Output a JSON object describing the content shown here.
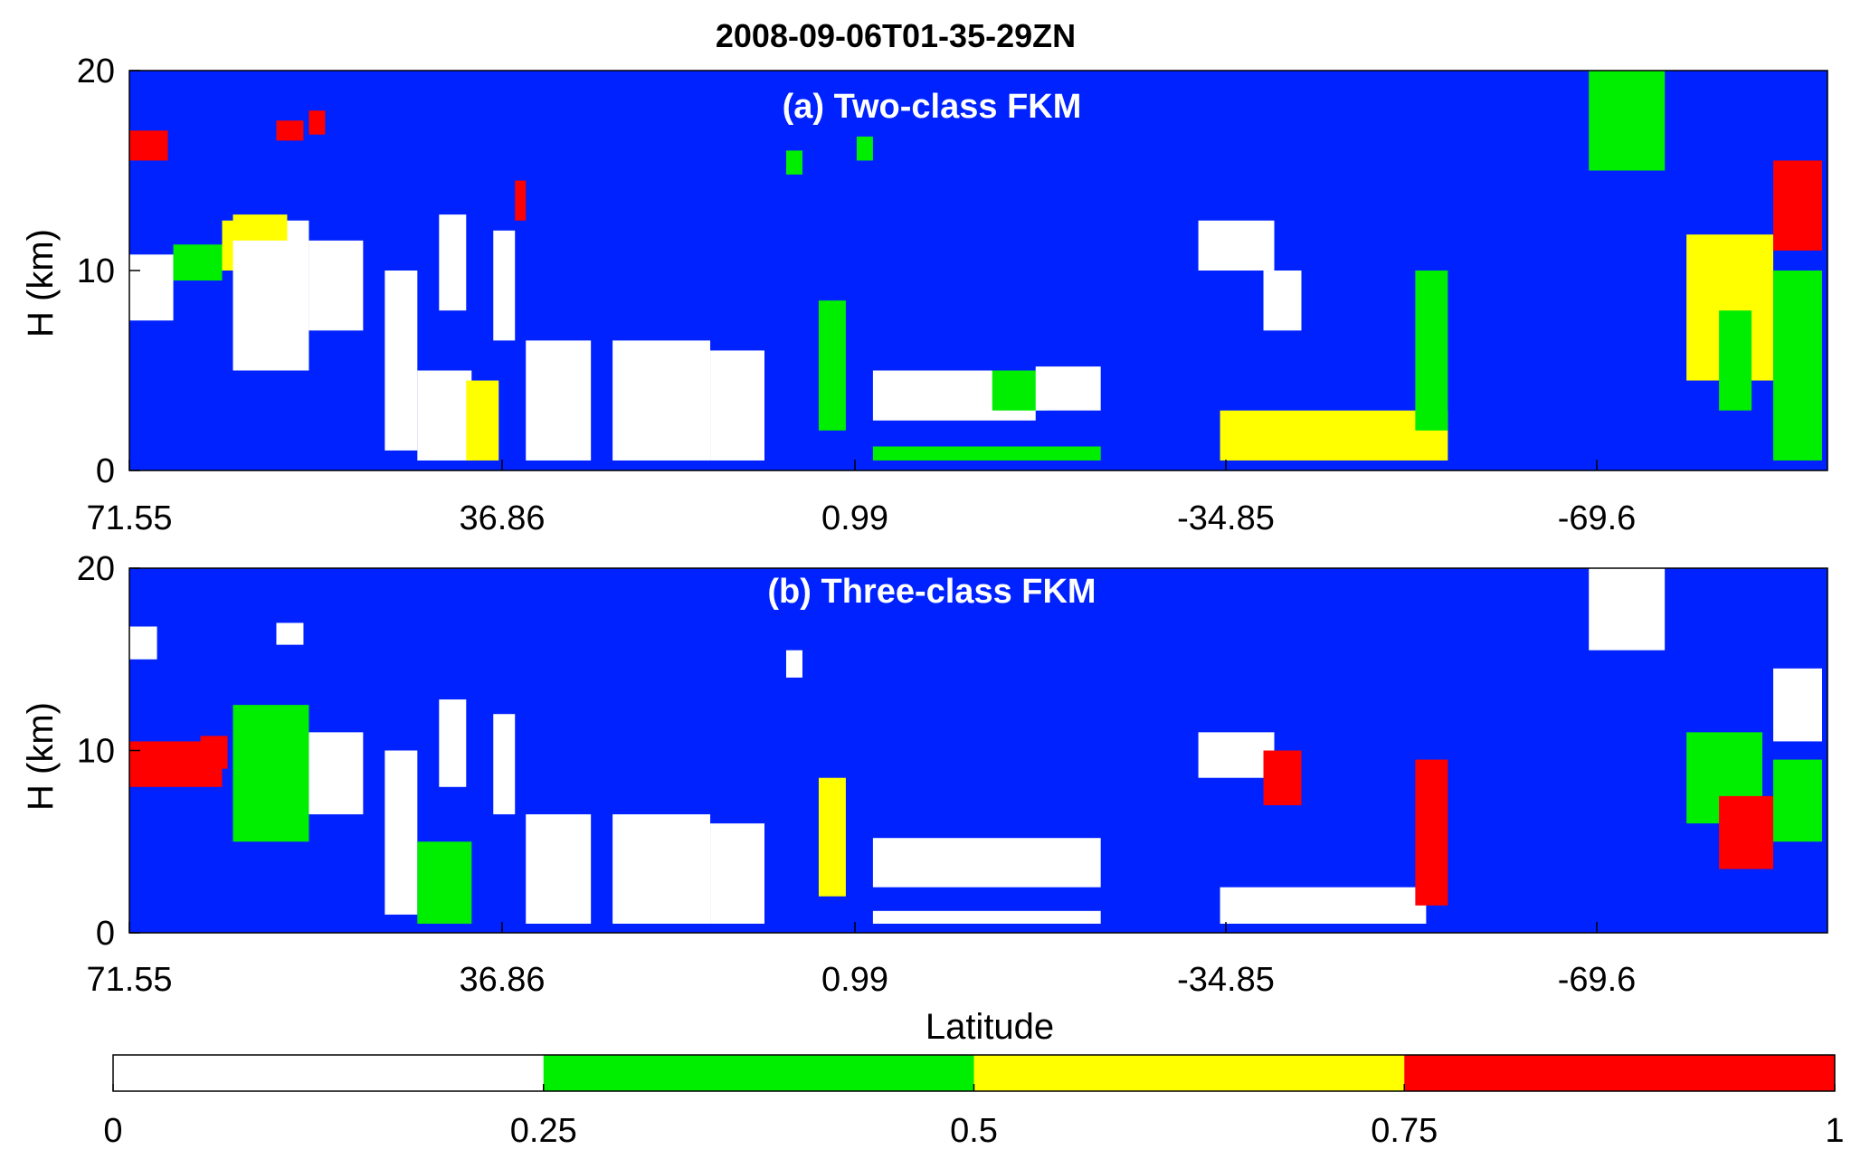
{
  "title": "2008-09-06T01-35-29ZN",
  "colors": {
    "background": "#0022ff",
    "bin_1": "#ffffff",
    "bin_2": "#00ee00",
    "bin_3": "#ffff00",
    "bin_4": "#ff0000"
  },
  "chart_data": [
    {
      "type": "heatmap",
      "panel_label": "(a) Two-class FKM",
      "xlabel": "",
      "ylabel": "H (km)",
      "x_ticks": [
        "71.55",
        "36.86",
        "0.99",
        "-34.85",
        "-69.6"
      ],
      "y_ticks": [
        "0",
        "10",
        "20"
      ],
      "xlim": [
        71.55,
        -85
      ],
      "ylim": [
        0,
        20
      ],
      "regions": [
        {
          "lat": [
            71.55,
            67.5
          ],
          "h": [
            7.5,
            10.8
          ],
          "value": 0.1
        },
        {
          "lat": [
            71.55,
            68.0
          ],
          "h": [
            15.5,
            17.0
          ],
          "value": 0.9
        },
        {
          "lat": [
            67.5,
            63.0
          ],
          "h": [
            9.5,
            11.3
          ],
          "value": 0.35
        },
        {
          "lat": [
            63.0,
            62.0
          ],
          "h": [
            10.0,
            12.5
          ],
          "value": 0.6
        },
        {
          "lat": [
            62.0,
            55.0
          ],
          "h": [
            5.0,
            12.5
          ],
          "value": 0.1
        },
        {
          "lat": [
            62.0,
            57.0
          ],
          "h": [
            11.5,
            12.8
          ],
          "value": 0.6
        },
        {
          "lat": [
            58.0,
            55.5
          ],
          "h": [
            16.5,
            17.5
          ],
          "value": 0.9
        },
        {
          "lat": [
            55.0,
            53.5
          ],
          "h": [
            16.8,
            18.0
          ],
          "value": 0.9
        },
        {
          "lat": [
            55.0,
            50.0
          ],
          "h": [
            7.0,
            11.5
          ],
          "value": 0.15
        },
        {
          "lat": [
            48.0,
            45.0
          ],
          "h": [
            1.0,
            10.0
          ],
          "value": 0.1
        },
        {
          "lat": [
            45.0,
            40.0
          ],
          "h": [
            0.5,
            5.0
          ],
          "value": 0.1
        },
        {
          "lat": [
            43.0,
            40.5
          ],
          "h": [
            8.0,
            12.8
          ],
          "value": 0.1
        },
        {
          "lat": [
            40.5,
            37.5
          ],
          "h": [
            0.5,
            4.5
          ],
          "value": 0.7
        },
        {
          "lat": [
            38.0,
            36.0
          ],
          "h": [
            6.5,
            12.0
          ],
          "value": 0.1
        },
        {
          "lat": [
            36.0,
            35.0
          ],
          "h": [
            12.5,
            14.5
          ],
          "value": 0.9
        },
        {
          "lat": [
            35.0,
            29.0
          ],
          "h": [
            0.5,
            6.5
          ],
          "value": 0.1
        },
        {
          "lat": [
            27.0,
            18.0
          ],
          "h": [
            0.5,
            6.5
          ],
          "value": 0.1
        },
        {
          "lat": [
            18.0,
            13.0
          ],
          "h": [
            0.5,
            6.0
          ],
          "value": 0.12
        },
        {
          "lat": [
            11.0,
            9.5
          ],
          "h": [
            14.8,
            16.0
          ],
          "value": 0.35
        },
        {
          "lat": [
            8.0,
            5.5
          ],
          "h": [
            2.0,
            8.5
          ],
          "value": 0.4
        },
        {
          "lat": [
            4.5,
            3.0
          ],
          "h": [
            15.5,
            16.7
          ],
          "value": 0.35
        },
        {
          "lat": [
            3.0,
            -12.0
          ],
          "h": [
            2.5,
            5.0
          ],
          "value": 0.1
        },
        {
          "lat": [
            -8.0,
            -13.0
          ],
          "h": [
            3.0,
            5.0
          ],
          "value": 0.3
        },
        {
          "lat": [
            -12.0,
            -18.0
          ],
          "h": [
            3.0,
            5.2
          ],
          "value": 0.1
        },
        {
          "lat": [
            3.0,
            -18.0
          ],
          "h": [
            0.5,
            1.2
          ],
          "value": 0.45
        },
        {
          "lat": [
            -27.0,
            -34.0
          ],
          "h": [
            10.0,
            12.5
          ],
          "value": 0.1
        },
        {
          "lat": [
            -33.0,
            -36.5
          ],
          "h": [
            7.0,
            10.0
          ],
          "value": 0.1
        },
        {
          "lat": [
            -29.0,
            -50.0
          ],
          "h": [
            0.5,
            3.0
          ],
          "value": 0.55
        },
        {
          "lat": [
            -47.0,
            -50.0
          ],
          "h": [
            2.0,
            10.0
          ],
          "value": 0.35
        },
        {
          "lat": [
            -63.0,
            -70.0
          ],
          "h": [
            15.0,
            20.0
          ],
          "value": 0.4
        },
        {
          "lat": [
            -72.0,
            -80.0
          ],
          "h": [
            4.5,
            11.8
          ],
          "value": 0.55
        },
        {
          "lat": [
            -75.0,
            -78.0
          ],
          "h": [
            3.0,
            8.0
          ],
          "value": 0.4
        },
        {
          "lat": [
            -80.0,
            -84.5
          ],
          "h": [
            11.0,
            15.5
          ],
          "value": 0.9
        },
        {
          "lat": [
            -80.0,
            -84.5
          ],
          "h": [
            0.5,
            10.0
          ],
          "value": 0.3
        }
      ]
    },
    {
      "type": "heatmap",
      "panel_label": "(b) Three-class FKM",
      "xlabel": "Latitude",
      "ylabel": "H (km)",
      "x_ticks": [
        "71.55",
        "36.86",
        "0.99",
        "-34.85",
        "-69.6"
      ],
      "y_ticks": [
        "0",
        "10",
        "20"
      ],
      "xlim": [
        71.55,
        -85
      ],
      "ylim": [
        0,
        20
      ],
      "regions": [
        {
          "lat": [
            71.55,
            63.0
          ],
          "h": [
            8.0,
            10.5
          ],
          "value": 0.9
        },
        {
          "lat": [
            71.55,
            69.0
          ],
          "h": [
            15.0,
            16.8
          ],
          "value": 0.1
        },
        {
          "lat": [
            65.0,
            62.5
          ],
          "h": [
            9.0,
            10.8
          ],
          "value": 0.85
        },
        {
          "lat": [
            62.0,
            55.0
          ],
          "h": [
            5.0,
            12.5
          ],
          "value": 0.35
        },
        {
          "lat": [
            58.0,
            55.5
          ],
          "h": [
            15.8,
            17.0
          ],
          "value": 0.1
        },
        {
          "lat": [
            55.0,
            50.0
          ],
          "h": [
            6.5,
            11.0
          ],
          "value": 0.1
        },
        {
          "lat": [
            48.0,
            45.0
          ],
          "h": [
            1.0,
            10.0
          ],
          "value": 0.1
        },
        {
          "lat": [
            45.0,
            40.0
          ],
          "h": [
            0.5,
            5.0
          ],
          "value": 0.35
        },
        {
          "lat": [
            43.0,
            40.5
          ],
          "h": [
            8.0,
            12.8
          ],
          "value": 0.1
        },
        {
          "lat": [
            38.0,
            36.0
          ],
          "h": [
            6.5,
            12.0
          ],
          "value": 0.1
        },
        {
          "lat": [
            35.0,
            29.0
          ],
          "h": [
            0.5,
            6.5
          ],
          "value": 0.1
        },
        {
          "lat": [
            27.0,
            18.0
          ],
          "h": [
            0.5,
            6.5
          ],
          "value": 0.1
        },
        {
          "lat": [
            18.0,
            13.0
          ],
          "h": [
            0.5,
            6.0
          ],
          "value": 0.12
        },
        {
          "lat": [
            11.0,
            9.5
          ],
          "h": [
            14.0,
            15.5
          ],
          "value": 0.1
        },
        {
          "lat": [
            8.0,
            5.5
          ],
          "h": [
            2.0,
            8.5
          ],
          "value": 0.6
        },
        {
          "lat": [
            3.0,
            -18.0
          ],
          "h": [
            2.5,
            5.2
          ],
          "value": 0.1
        },
        {
          "lat": [
            3.0,
            -18.0
          ],
          "h": [
            0.5,
            1.2
          ],
          "value": 0.1
        },
        {
          "lat": [
            -27.0,
            -34.0
          ],
          "h": [
            8.5,
            11.0
          ],
          "value": 0.1
        },
        {
          "lat": [
            -33.0,
            -36.5
          ],
          "h": [
            7.0,
            10.0
          ],
          "value": 0.8
        },
        {
          "lat": [
            -29.0,
            -48.0
          ],
          "h": [
            0.5,
            2.5
          ],
          "value": 0.1
        },
        {
          "lat": [
            -47.0,
            -50.0
          ],
          "h": [
            1.5,
            9.5
          ],
          "value": 0.8
        },
        {
          "lat": [
            -63.0,
            -70.0
          ],
          "h": [
            15.5,
            20.0
          ],
          "value": 0.1
        },
        {
          "lat": [
            -72.0,
            -79.0
          ],
          "h": [
            6.0,
            11.0
          ],
          "value": 0.35
        },
        {
          "lat": [
            -75.0,
            -80.0
          ],
          "h": [
            3.5,
            7.5
          ],
          "value": 0.9
        },
        {
          "lat": [
            -80.0,
            -84.5
          ],
          "h": [
            10.5,
            14.5
          ],
          "value": 0.1
        },
        {
          "lat": [
            -80.0,
            -84.5
          ],
          "h": [
            5.0,
            9.5
          ],
          "value": 0.35
        }
      ]
    }
  ],
  "colorbar": {
    "ticks": [
      "0",
      "0.25",
      "0.5",
      "0.75",
      "1"
    ],
    "bins": [
      {
        "range": [
          0,
          0.25
        ],
        "color": "#ffffff"
      },
      {
        "range": [
          0.25,
          0.5
        ],
        "color": "#00ee00"
      },
      {
        "range": [
          0.5,
          0.75
        ],
        "color": "#ffff00"
      },
      {
        "range": [
          0.75,
          1
        ],
        "color": "#ff0000"
      }
    ]
  }
}
